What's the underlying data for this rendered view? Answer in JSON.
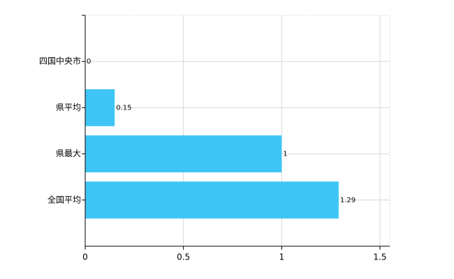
{
  "chart_data": {
    "type": "bar",
    "orientation": "horizontal",
    "categories": [
      "四国中央市",
      "県平均",
      "県最大",
      "全国平均"
    ],
    "values": [
      0,
      0.15,
      1,
      1.29
    ],
    "color": "#3fc5f5",
    "xlim": [
      0,
      1.55
    ],
    "xticks": [
      0,
      0.5,
      1,
      1.5
    ],
    "grid": true
  }
}
